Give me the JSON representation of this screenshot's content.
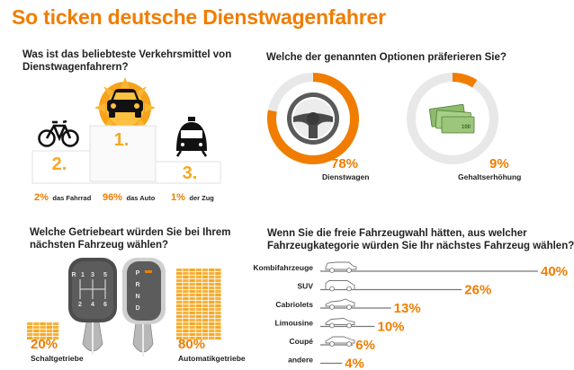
{
  "title": "So ticken deutsche Dienstwagenfahrer",
  "colors": {
    "accent": "#f07d00",
    "grey": "#e8e8e8",
    "dark": "#222222"
  },
  "section1": {
    "question_line1": "Was ist das beliebteste Verkehrsmittel von",
    "question_line2": "Dienstwagenfahrern?",
    "ranks": [
      {
        "rank": "1.",
        "pct": "96%",
        "label": "das Auto",
        "icon": "car-icon"
      },
      {
        "rank": "2.",
        "pct": "2%",
        "label": "das Fahrrad",
        "icon": "bicycle-icon"
      },
      {
        "rank": "3.",
        "pct": "1%",
        "label": "der Zug",
        "icon": "train-icon"
      }
    ]
  },
  "section2": {
    "question": "Welche der genannten Optionen präferieren Sie?",
    "options": [
      {
        "pct": "78%",
        "label": "Dienstwagen",
        "icon": "steering-wheel-icon"
      },
      {
        "pct": "9%",
        "label": "Gehaltserhöhung",
        "icon": "money-icon"
      }
    ]
  },
  "section3": {
    "question_line1": "Welche Getriebeart würden Sie bei Ihrem",
    "question_line2": "nächsten Fahrzeug wählen?",
    "options": [
      {
        "pct": "20%",
        "label": "Schaltgetriebe",
        "icon": "manual-gearshift-icon"
      },
      {
        "pct": "80%",
        "label": "Automatikgetriebe",
        "icon": "automatic-gearshift-icon"
      }
    ],
    "manual_gear_labels": [
      "R",
      "1",
      "3",
      "5",
      "2",
      "4",
      "6"
    ],
    "auto_gear_labels": [
      "P",
      "R",
      "N",
      "D"
    ]
  },
  "section4": {
    "question_line1": "Wenn Sie die freie Fahrzeugwahl hätten, aus welcher",
    "question_line2": "Fahrzeugkategorie würden Sie Ihr nächstes Fahrzeug wählen?"
  },
  "chart_data": [
    {
      "type": "bar",
      "title": "Was ist das beliebteste Verkehrsmittel von Dienstwagenfahrern?",
      "categories": [
        "das Fahrrad",
        "das Auto",
        "der Zug"
      ],
      "values": [
        2,
        96,
        1
      ],
      "unit": "%"
    },
    {
      "type": "pie",
      "title": "Welche der genannten Optionen präferieren Sie?",
      "categories": [
        "Dienstwagen",
        "Gehaltserhöhung"
      ],
      "values": [
        78,
        9
      ],
      "unit": "%"
    },
    {
      "type": "bar",
      "title": "Welche Getriebeart würden Sie bei Ihrem nächsten Fahrzeug wählen?",
      "categories": [
        "Schaltgetriebe",
        "Automatikgetriebe"
      ],
      "values": [
        20,
        80
      ],
      "unit": "%"
    },
    {
      "type": "bar",
      "title": "Wenn Sie die freie Fahrzeugwahl hätten, aus welcher Fahrzeugkategorie würden Sie Ihr nächstes Fahrzeug wählen?",
      "categories": [
        "Kombifahrzeuge",
        "SUV",
        "Cabriolets",
        "Limousine",
        "Coupé",
        "andere"
      ],
      "values": [
        40,
        26,
        13,
        10,
        6,
        4
      ],
      "value_labels": [
        "40%",
        "26%",
        "13%",
        "10%",
        "6%",
        "4%"
      ],
      "unit": "%"
    }
  ]
}
